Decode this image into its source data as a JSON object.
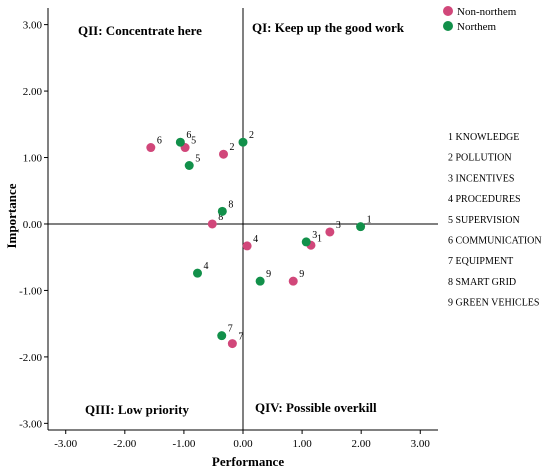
{
  "chart_data": {
    "type": "scatter",
    "xlabel": "Performance",
    "ylabel": "Importance",
    "xlim": [
      -3.3,
      3.3
    ],
    "ylim": [
      -3.1,
      3.25
    ],
    "x_ticks": [
      "-3.00",
      "-2.00",
      "-1.00",
      "0.00",
      "1.00",
      "2.00",
      "3.00"
    ],
    "y_ticks": [
      "3.00",
      "2.00",
      "1.00",
      "0.00",
      "-1.00",
      "-2.00",
      "-3.00"
    ],
    "x_tick_values": [
      -3,
      -2,
      -1,
      0,
      1,
      2,
      3
    ],
    "y_tick_values": [
      3,
      2,
      1,
      0,
      -1,
      -2,
      -3
    ],
    "quadrants": {
      "q1": "QI: Keep up the good work",
      "q2": "QII: Concentrate here",
      "q3": "QIII: Low priority",
      "q4": "QIV: Possible overkill"
    },
    "legend_position": "top-right",
    "series": [
      {
        "name": "Non-northem",
        "color": "#d1477a",
        "points": [
          {
            "label": "1",
            "x": 1.15,
            "y": -0.32
          },
          {
            "label": "2",
            "x": -0.33,
            "y": 1.05
          },
          {
            "label": "3",
            "x": 1.47,
            "y": -0.12
          },
          {
            "label": "4",
            "x": 0.07,
            "y": -0.33
          },
          {
            "label": "5",
            "x": -0.98,
            "y": 1.15
          },
          {
            "label": "6",
            "x": -1.56,
            "y": 1.15
          },
          {
            "label": "7",
            "x": -0.18,
            "y": -1.8
          },
          {
            "label": "8",
            "x": -0.52,
            "y": 0.0
          },
          {
            "label": "9",
            "x": 0.85,
            "y": -0.86
          }
        ]
      },
      {
        "name": "Northem",
        "color": "#12904a",
        "points": [
          {
            "label": "1",
            "x": 1.99,
            "y": -0.04
          },
          {
            "label": "2",
            "x": 0.0,
            "y": 1.23
          },
          {
            "label": "3",
            "x": 1.07,
            "y": -0.27
          },
          {
            "label": "4",
            "x": -0.77,
            "y": -0.74
          },
          {
            "label": "5",
            "x": -0.91,
            "y": 0.88
          },
          {
            "label": "6",
            "x": -1.06,
            "y": 1.23
          },
          {
            "label": "7",
            "x": -0.36,
            "y": -1.68
          },
          {
            "label": "8",
            "x": -0.35,
            "y": 0.19
          },
          {
            "label": "9",
            "x": 0.29,
            "y": -0.86
          }
        ]
      }
    ],
    "key": [
      "1 KNOWLEDGE",
      "2 POLLUTION",
      "3 INCENTIVES",
      "4 PROCEDURES",
      "5 SUPERVISION",
      "6 COMMUNICATION",
      "7 EQUIPMENT",
      "8 SMART GRID",
      "9 GREEN VEHICLES"
    ]
  }
}
